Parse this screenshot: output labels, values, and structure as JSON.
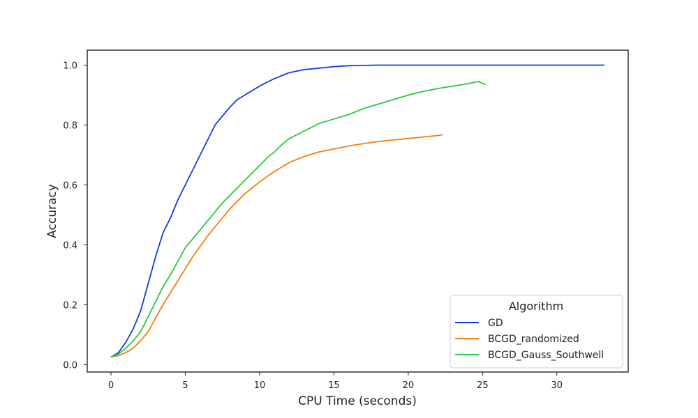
{
  "chart_data": {
    "type": "line",
    "title": "",
    "xlabel": "CPU Time (seconds)",
    "ylabel": "Accuracy",
    "xlim": [
      -1.6,
      34.8
    ],
    "ylim": [
      -0.025,
      1.05
    ],
    "xticks": [
      0,
      5,
      10,
      15,
      20,
      25,
      30
    ],
    "yticks": [
      0.0,
      0.2,
      0.4,
      0.6,
      0.8,
      1.0
    ],
    "xtick_labels": [
      "0",
      "5",
      "10",
      "15",
      "20",
      "25",
      "30"
    ],
    "ytick_labels": [
      "0.0",
      "0.2",
      "0.4",
      "0.6",
      "0.8",
      "1.0"
    ],
    "grid": false,
    "legend": {
      "title": "Algorithm",
      "position": "lower-right",
      "entries": [
        "GD",
        "BCGD_randomized",
        "BCGD_Gauss_Southwell"
      ]
    },
    "series": [
      {
        "name": "GD",
        "color": "#0a3de6",
        "x": [
          0,
          0.5,
          1,
          1.5,
          2,
          2.5,
          3,
          3.5,
          4,
          4.5,
          5,
          5.5,
          6,
          6.5,
          7,
          7.5,
          8,
          8.5,
          9,
          9.5,
          10,
          10.5,
          11,
          11.5,
          12,
          13,
          14,
          15,
          16,
          17,
          18,
          20,
          22,
          25,
          28,
          31,
          33.2
        ],
        "y": [
          0.025,
          0.04,
          0.075,
          0.12,
          0.18,
          0.27,
          0.36,
          0.44,
          0.49,
          0.55,
          0.6,
          0.65,
          0.7,
          0.75,
          0.8,
          0.83,
          0.86,
          0.885,
          0.9,
          0.915,
          0.93,
          0.943,
          0.955,
          0.965,
          0.975,
          0.985,
          0.99,
          0.995,
          0.998,
          0.999,
          1.0,
          1.0,
          1.0,
          1.0,
          1.0,
          1.0,
          1.0
        ]
      },
      {
        "name": "BCGD_randomized",
        "color": "#f57c0a",
        "x": [
          0,
          0.5,
          1,
          1.5,
          2,
          2.5,
          3,
          3.5,
          4,
          4.5,
          5,
          5.5,
          6,
          6.5,
          7,
          7.5,
          8,
          8.5,
          9,
          9.5,
          10,
          10.5,
          11,
          11.5,
          12,
          13,
          14,
          15,
          16,
          17,
          18,
          19,
          20,
          21,
          22,
          22.3
        ],
        "y": [
          0.025,
          0.03,
          0.04,
          0.055,
          0.08,
          0.11,
          0.155,
          0.2,
          0.24,
          0.28,
          0.32,
          0.36,
          0.395,
          0.43,
          0.46,
          0.49,
          0.52,
          0.545,
          0.57,
          0.59,
          0.61,
          0.628,
          0.645,
          0.66,
          0.675,
          0.695,
          0.71,
          0.72,
          0.73,
          0.738,
          0.745,
          0.75,
          0.755,
          0.76,
          0.765,
          0.768
        ]
      },
      {
        "name": "BCGD_Gauss_Southwell",
        "color": "#23c93c",
        "x": [
          0,
          0.5,
          1,
          1.5,
          2,
          2.5,
          3,
          3.5,
          4,
          4.5,
          5,
          5.5,
          6,
          6.5,
          7,
          7.5,
          8,
          8.5,
          9,
          9.5,
          10,
          10.5,
          11,
          11.5,
          12,
          13,
          14,
          15,
          16,
          17,
          18,
          19,
          20,
          21,
          22,
          23,
          24,
          24.7,
          25.2
        ],
        "y": [
          0.025,
          0.035,
          0.055,
          0.08,
          0.11,
          0.16,
          0.21,
          0.26,
          0.3,
          0.345,
          0.39,
          0.42,
          0.45,
          0.48,
          0.51,
          0.54,
          0.565,
          0.59,
          0.615,
          0.64,
          0.665,
          0.69,
          0.71,
          0.735,
          0.755,
          0.78,
          0.805,
          0.82,
          0.835,
          0.855,
          0.87,
          0.885,
          0.9,
          0.912,
          0.922,
          0.93,
          0.938,
          0.945,
          0.935
        ]
      }
    ]
  }
}
